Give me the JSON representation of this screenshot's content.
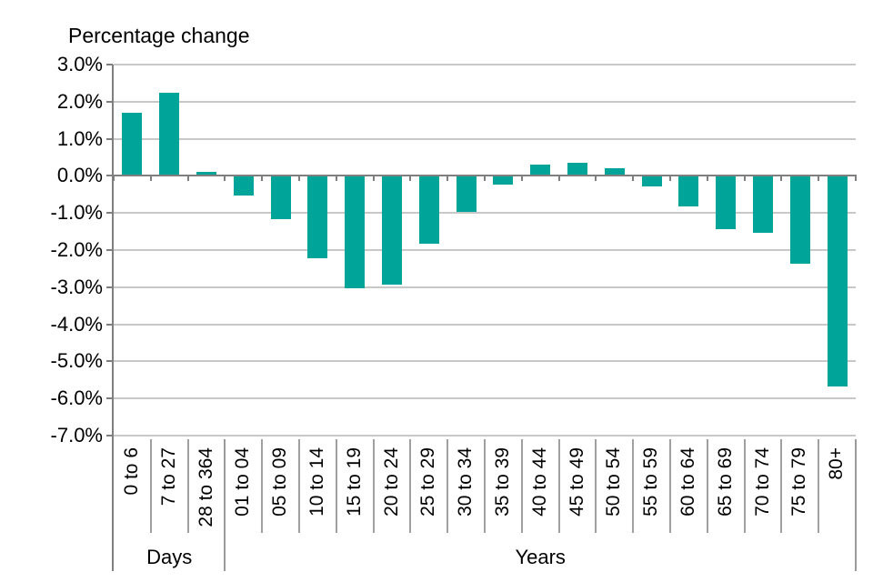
{
  "chart_data": {
    "type": "bar",
    "title": "Percentage change",
    "legend": "none",
    "grid": "horizontal",
    "ylim": [
      -7,
      3
    ],
    "ylabel": "Percentage change",
    "xlabel": "",
    "categories": [
      "0 to 6",
      "7 to 27",
      "28 to 364",
      "01 to 04",
      "05 to 09",
      "10 to 14",
      "15 to 19",
      "20 to 24",
      "25 to 29",
      "30 to 34",
      "35 to 39",
      "40 to 44",
      "45 to 49",
      "50 to 54",
      "55 to 59",
      "60 to 64",
      "65 to 69",
      "70 to 74",
      "75 to 79",
      "80+"
    ],
    "values": [
      1.7,
      2.25,
      0.1,
      -0.5,
      -1.15,
      -2.2,
      -3.0,
      -2.9,
      -1.8,
      -0.95,
      -0.2,
      0.3,
      0.35,
      0.2,
      -0.25,
      -0.8,
      -1.4,
      -1.5,
      -2.35,
      -5.65
    ],
    "groups": [
      {
        "label": "Days",
        "count": 3
      },
      {
        "label": "Years",
        "count": 17
      }
    ],
    "y_ticks": [
      {
        "value": 3,
        "label": "3.0%"
      },
      {
        "value": 2,
        "label": "2.0%"
      },
      {
        "value": 1,
        "label": "1.0%"
      },
      {
        "value": 0,
        "label": "0.0%"
      },
      {
        "value": -1,
        "label": "-1.0%"
      },
      {
        "value": -2,
        "label": "-2.0%"
      },
      {
        "value": -3,
        "label": "-3.0%"
      },
      {
        "value": -4,
        "label": "-4.0%"
      },
      {
        "value": -5,
        "label": "-5.0%"
      },
      {
        "value": -6,
        "label": "-6.0%"
      },
      {
        "value": -7,
        "label": "-7.0%"
      }
    ],
    "colors": {
      "bar": "#00a499",
      "gridline": "#c8c8c8",
      "axis": "#7f7f7f",
      "divider": "#a0a0a0",
      "text": "#000000",
      "background": "#ffffff"
    }
  }
}
